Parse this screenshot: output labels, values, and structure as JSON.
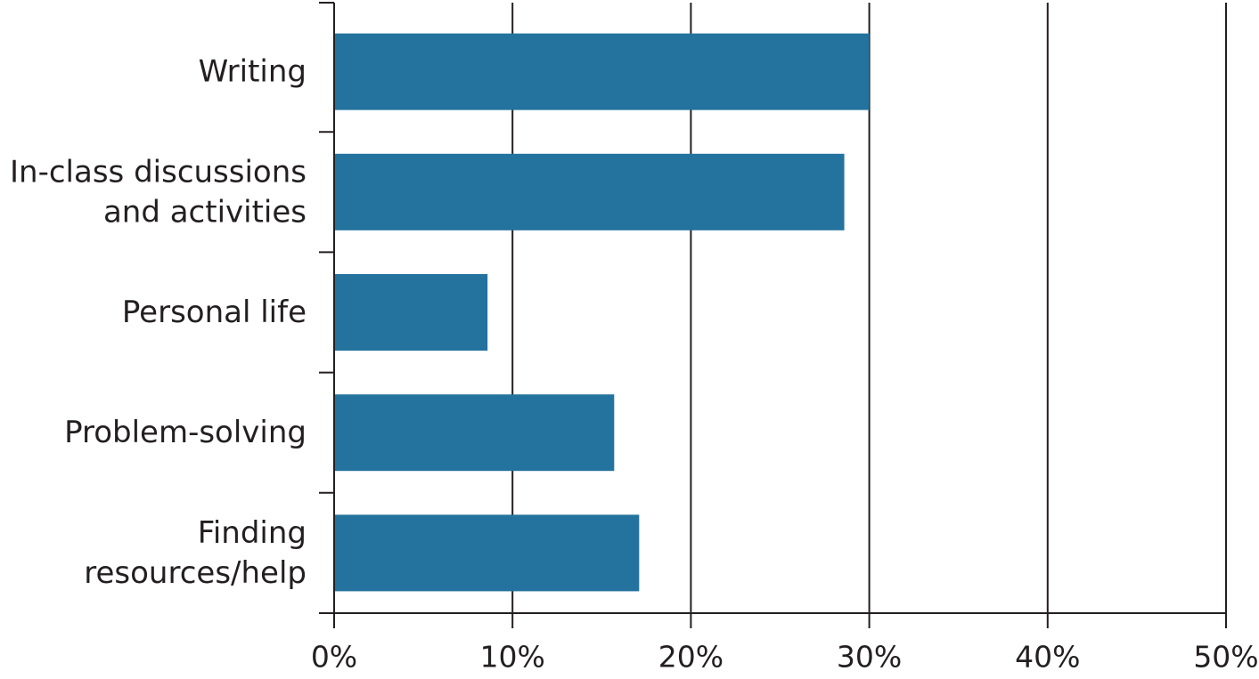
{
  "chart_data": {
    "type": "bar",
    "orientation": "horizontal",
    "categories": [
      [
        "Writing"
      ],
      [
        "In-class discussions",
        "and activities"
      ],
      [
        "Personal life"
      ],
      [
        "Problem-solving"
      ],
      [
        "Finding",
        "resources/help"
      ]
    ],
    "values": [
      30,
      28.6,
      8.6,
      15.7,
      17.1
    ],
    "xlim": [
      0,
      50
    ],
    "xticks": [
      0,
      10,
      20,
      30,
      40,
      50
    ],
    "xtick_labels": [
      "0%",
      "10%",
      "20%",
      "30%",
      "40%",
      "50%"
    ],
    "title": "",
    "xlabel": "",
    "ylabel": "",
    "grid": "vertical",
    "legend": "none",
    "bar_color": "#24729e"
  }
}
